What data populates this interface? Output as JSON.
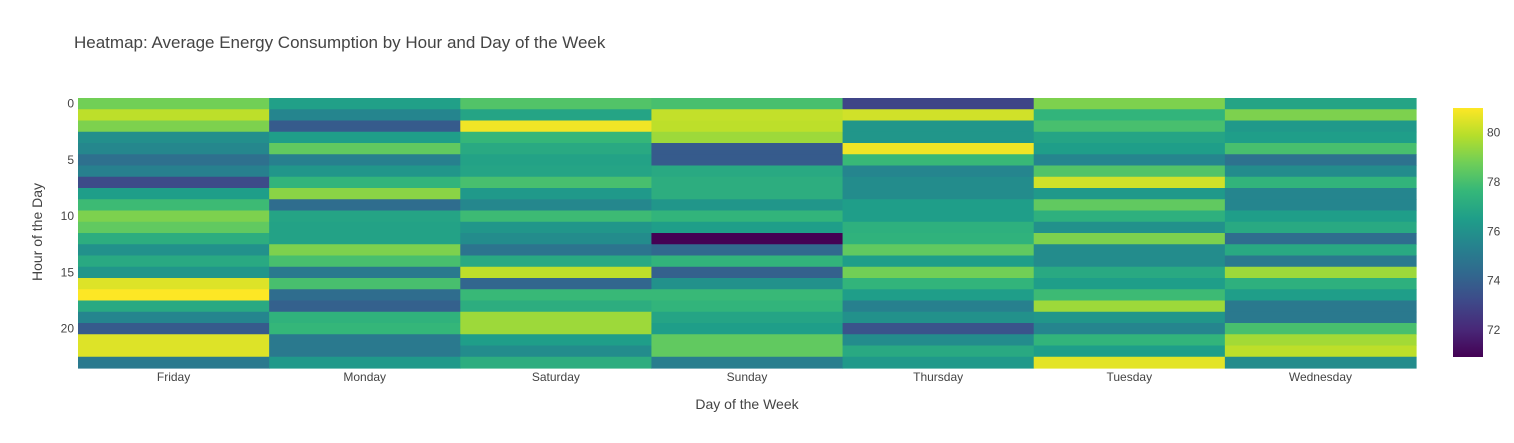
{
  "chart_data": {
    "type": "heatmap",
    "title": "Heatmap: Average Energy Consumption by Hour and Day of the Week",
    "xlabel": "Day of the Week",
    "ylabel": "Hour of the Day",
    "x": [
      "Friday",
      "Monday",
      "Saturday",
      "Sunday",
      "Thursday",
      "Tuesday",
      "Wednesday"
    ],
    "y": [
      0,
      1,
      2,
      3,
      4,
      5,
      6,
      7,
      8,
      9,
      10,
      11,
      12,
      13,
      14,
      15,
      16,
      17,
      18,
      19,
      20,
      21,
      22,
      23
    ],
    "y_ticks": [
      0,
      5,
      10,
      15,
      20
    ],
    "colorscale": "Viridis",
    "colorscale_stops": [
      "#440154",
      "#482878",
      "#3e4989",
      "#31688e",
      "#26828e",
      "#1f9e89",
      "#35b779",
      "#6ece58",
      "#b5de2b",
      "#fde725"
    ],
    "zmin": 70.9,
    "zmax": 81.0,
    "colorbar_ticks": [
      72,
      74,
      76,
      78,
      80
    ],
    "z": [
      [
        78.8,
        76.6,
        78.2,
        78.0,
        73.0,
        79.0,
        76.8
      ],
      [
        80.0,
        75.5,
        76.8,
        80.1,
        80.3,
        77.5,
        79.0
      ],
      [
        79.0,
        73.8,
        80.8,
        80.0,
        76.2,
        78.0,
        76.3
      ],
      [
        75.9,
        76.5,
        77.6,
        79.5,
        76.2,
        76.8,
        76.5
      ],
      [
        75.6,
        78.5,
        77.0,
        73.8,
        80.8,
        76.5,
        78.0
      ],
      [
        74.6,
        75.3,
        76.7,
        73.8,
        77.7,
        75.5,
        74.7
      ],
      [
        75.3,
        76.2,
        76.8,
        77.0,
        75.5,
        78.2,
        75.8
      ],
      [
        73.2,
        77.5,
        78.0,
        77.2,
        75.8,
        80.3,
        77.5
      ],
      [
        76.5,
        79.2,
        76.3,
        77.2,
        75.8,
        76.3,
        75.5
      ],
      [
        77.8,
        74.5,
        75.6,
        76.2,
        76.5,
        78.5,
        75.5
      ],
      [
        79.0,
        76.8,
        77.8,
        77.5,
        76.5,
        77.3,
        76.5
      ],
      [
        78.5,
        76.7,
        76.2,
        76.5,
        77.3,
        76.0,
        77.0
      ],
      [
        77.2,
        76.7,
        75.8,
        70.9,
        77.4,
        79.0,
        74.5
      ],
      [
        76.0,
        79.0,
        74.8,
        74.3,
        78.5,
        75.8,
        77.0
      ],
      [
        77.0,
        78.0,
        77.0,
        77.5,
        76.5,
        75.8,
        75.0
      ],
      [
        76.2,
        75.0,
        80.0,
        74.0,
        78.8,
        77.0,
        79.5
      ],
      [
        80.5,
        78.0,
        74.2,
        76.0,
        77.5,
        76.5,
        77.3
      ],
      [
        81.0,
        74.5,
        77.7,
        77.7,
        76.5,
        77.8,
        76.5
      ],
      [
        77.0,
        74.0,
        77.2,
        77.5,
        75.3,
        79.5,
        75.0
      ],
      [
        75.5,
        77.4,
        79.5,
        76.8,
        76.0,
        76.2,
        75.0
      ],
      [
        73.8,
        77.6,
        79.5,
        76.5,
        73.5,
        75.5,
        78.0
      ],
      [
        80.5,
        75.0,
        76.5,
        78.5,
        75.8,
        77.5,
        79.6
      ],
      [
        80.5,
        75.0,
        75.8,
        78.5,
        77.0,
        76.5,
        80.0
      ],
      [
        75.0,
        76.3,
        77.2,
        75.2,
        76.3,
        80.6,
        75.8
      ]
    ]
  }
}
